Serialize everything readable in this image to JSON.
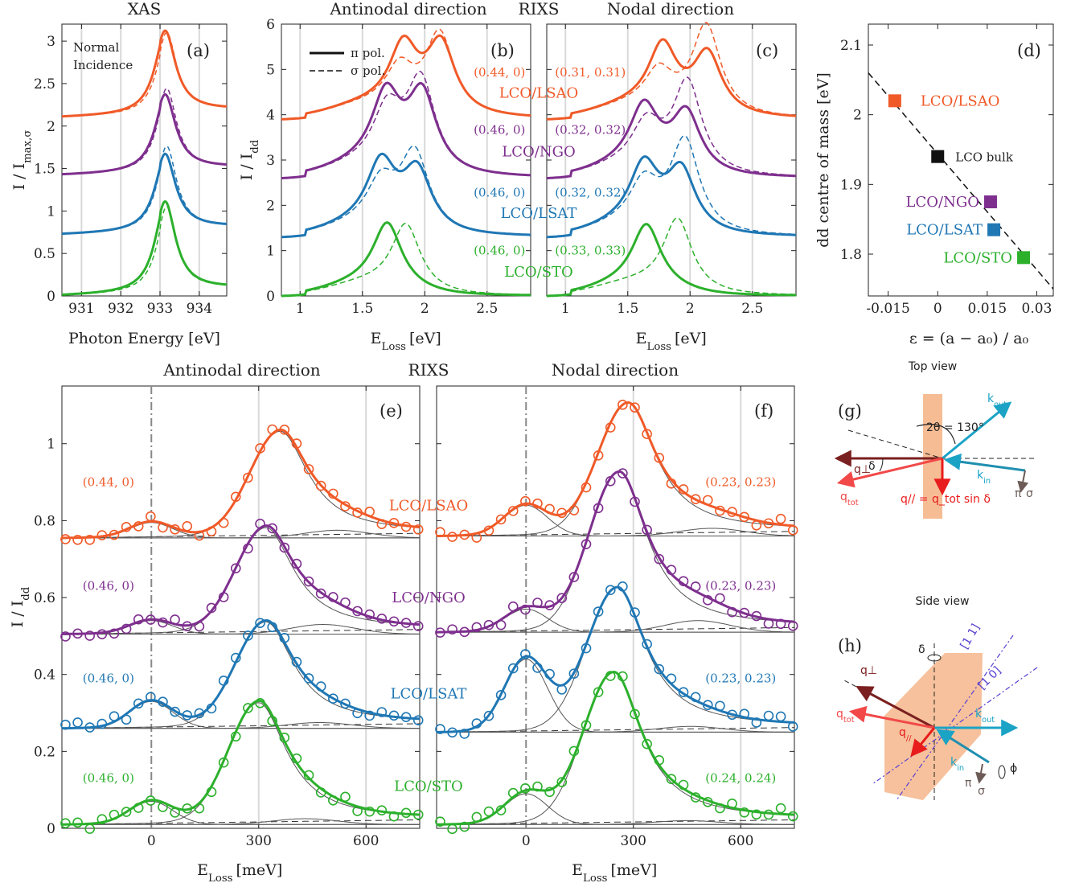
{
  "colors": {
    "LSAO": "#f05a28",
    "NGO": "#7e2f8e",
    "LSAT": "#1f77b4",
    "STO": "#2cb02c",
    "bulk": "#111111",
    "fit": "#555555",
    "kout": "#1ba3c6",
    "qperp": "#7a1f1f",
    "qtot": "#f24848",
    "qpar": "#e81c1c",
    "slab": "#f4b183",
    "plane": "#5a3fd0",
    "pol": "#6b5a55"
  },
  "top_titles": {
    "xas": "XAS",
    "antinodal": "Antinodal direction",
    "rixs": "RIXS",
    "nodal": "Nodal direction"
  },
  "bottom_titles": {
    "antinodal": "Antinodal direction",
    "rixs": "RIXS",
    "nodal": "Nodal direction"
  },
  "samples": [
    "LCO/LSAO",
    "LCO/NGO",
    "LCO/LSAT",
    "LCO/STO"
  ],
  "panel_a": {
    "label": "(a)",
    "ylabel": "I / I_max,σ",
    "xlabel": "Photon Energy [eV]",
    "note_line1": "Normal",
    "note_line2": "Incidence",
    "xticks": [
      "931",
      "932",
      "933",
      "934"
    ],
    "yticks": [
      "0",
      "0.5",
      "1",
      "1.5",
      "2",
      "2.5",
      "3"
    ]
  },
  "panel_b": {
    "label": "(b)",
    "ylabel": "I / I_dd",
    "xlabel": "E_Loss [eV]",
    "xticks": [
      "1",
      "1.5",
      "2",
      "2.5"
    ],
    "yticks": [
      "0",
      "1",
      "2",
      "3",
      "4",
      "5",
      "6"
    ],
    "legend_pi": "π pol.",
    "legend_sigma": "σ pol.",
    "q_labels": [
      "(0.44, 0)",
      "(0.46, 0)",
      "(0.46, 0)",
      "(0.46, 0)"
    ]
  },
  "panel_c": {
    "label": "(c)",
    "xlabel": "E_Loss [eV]",
    "xticks": [
      "1",
      "1.5",
      "2",
      "2.5"
    ],
    "q_labels": [
      "(0.31, 0.31)",
      "(0.32, 0.32)",
      "(0.32, 0.32)",
      "(0.33, 0.33)"
    ]
  },
  "panel_d": {
    "label": "(d)",
    "ylabel": "dd centre of mass [eV]",
    "xlabel": "ε = (a − a₀) / a₀",
    "xticks": [
      "-0.015",
      "0",
      "0.015",
      "0.03"
    ],
    "yticks": [
      "1.8",
      "1.9",
      "2",
      "2.1"
    ],
    "bulk_label": "LCO bulk"
  },
  "panel_e": {
    "label": "(e)",
    "ylabel": "I / I_dd",
    "xlabel": "E_Loss [meV]",
    "xticks": [
      "0",
      "300",
      "600"
    ],
    "yticks": [
      "0",
      "0.2",
      "0.4",
      "0.6",
      "0.8",
      "1"
    ],
    "q_labels": [
      "(0.44, 0)",
      "(0.46, 0)",
      "(0.46, 0)",
      "(0.46, 0)"
    ]
  },
  "panel_f": {
    "label": "(f)",
    "xlabel": "E_Loss [meV]",
    "xticks": [
      "0",
      "300",
      "600"
    ],
    "q_labels": [
      "(0.23, 0.23)",
      "(0.23, 0.23)",
      "(0.23, 0.23)",
      "(0.24, 0.24)"
    ]
  },
  "panel_g": {
    "label": "(g)",
    "title": "Top view",
    "k_out": "k_out",
    "k_in": "k_in",
    "q_perp": "q⊥",
    "q_tot": "q_tot",
    "q_par_eq": "q// = q_tot sin δ",
    "angle": "2θ = 130°",
    "delta": "δ",
    "pi": "π",
    "sigma": "σ"
  },
  "panel_h": {
    "label": "(h)",
    "title": "Side view",
    "k_out": "k_out",
    "k_in": "k_in",
    "q_perp": "q⊥",
    "q_tot": "q_tot",
    "q_par": "q//",
    "dir_11": "[1 1]",
    "dir_10": "[1 0]",
    "delta": "δ",
    "phi": "ϕ",
    "pi": "π",
    "sigma": "σ"
  },
  "chart_data": [
    {
      "panel": "a",
      "type": "line",
      "title": "XAS",
      "xlabel": "Photon Energy [eV]",
      "ylabel": "I / I_max,σ",
      "xlim": [
        930.5,
        934.7
      ],
      "ylim": [
        0,
        3.2
      ],
      "peak_eV": 933.05,
      "series": [
        {
          "name": "LCO/LSAO",
          "offset": 2.1,
          "peak_pi": 0.95,
          "peak_sigma": 0.93
        },
        {
          "name": "LCO/NGO",
          "offset": 1.42,
          "peak_pi": 0.88,
          "peak_sigma": 0.95
        },
        {
          "name": "LCO/LSAT",
          "offset": 0.72,
          "peak_pi": 0.88,
          "peak_sigma": 0.97
        },
        {
          "name": "LCO/STO",
          "offset": 0.0,
          "peak_pi": 1.04,
          "peak_sigma": 0.98
        }
      ]
    },
    {
      "panel": "b",
      "type": "line",
      "title": "Antinodal direction",
      "xlabel": "E_Loss [eV]",
      "ylabel": "I / I_dd",
      "xlim": [
        0.85,
        2.85
      ],
      "ylim": [
        0,
        6
      ],
      "series": [
        {
          "name": "LCO/LSAO",
          "offset": 3.9,
          "pi_peaks": [
            [
              1.83,
              1.4
            ],
            [
              2.13,
              1.55
            ]
          ],
          "sigma_peaks": [
            [
              1.8,
              0.9
            ],
            [
              2.12,
              1.8
            ]
          ]
        },
        {
          "name": "LCO/NGO",
          "offset": 2.6,
          "pi_peaks": [
            [
              1.69,
              1.55
            ],
            [
              1.98,
              1.7
            ]
          ],
          "sigma_peaks": [
            [
              1.7,
              1.2
            ],
            [
              1.97,
              2.0
            ]
          ]
        },
        {
          "name": "LCO/LSAT",
          "offset": 1.3,
          "pi_peaks": [
            [
              1.65,
              1.35
            ],
            [
              1.94,
              1.3
            ]
          ],
          "sigma_peaks": [
            [
              1.65,
              0.9
            ],
            [
              1.92,
              1.7
            ]
          ]
        },
        {
          "name": "LCO/STO",
          "offset": 0.0,
          "pi_peaks": [
            [
              1.7,
              1.4
            ]
          ],
          "sigma_peaks": [
            [
              1.85,
              1.45
            ]
          ]
        }
      ]
    },
    {
      "panel": "c",
      "type": "line",
      "title": "Nodal direction",
      "xlabel": "E_Loss [eV]",
      "xlim": [
        0.85,
        2.85
      ],
      "ylim": [
        0,
        6
      ],
      "series": [
        {
          "name": "LCO/LSAO",
          "offset": 3.9,
          "pi_peaks": [
            [
              1.78,
              1.4
            ],
            [
              2.14,
              1.35
            ]
          ],
          "sigma_peaks": [
            [
              1.75,
              0.8
            ],
            [
              2.13,
              2.0
            ]
          ]
        },
        {
          "name": "LCO/NGO",
          "offset": 2.6,
          "pi_peaks": [
            [
              1.63,
              1.3
            ],
            [
              1.97,
              1.3
            ]
          ],
          "sigma_peaks": [
            [
              1.65,
              0.9
            ],
            [
              1.98,
              2.0
            ]
          ]
        },
        {
          "name": "LCO/LSAT",
          "offset": 1.3,
          "pi_peaks": [
            [
              1.63,
              1.3
            ],
            [
              1.93,
              1.3
            ]
          ],
          "sigma_peaks": [
            [
              1.63,
              0.9
            ],
            [
              1.96,
              2.0
            ]
          ]
        },
        {
          "name": "LCO/STO",
          "offset": 0.0,
          "pi_peaks": [
            [
              1.65,
              1.35
            ]
          ],
          "sigma_peaks": [
            [
              1.9,
              1.6
            ]
          ]
        }
      ]
    },
    {
      "panel": "d",
      "type": "scatter",
      "xlabel": "ε = (a − a₀) / a₀",
      "ylabel": "dd centre of mass [eV]",
      "xlim": [
        -0.021,
        0.035
      ],
      "ylim": [
        1.74,
        2.13
      ],
      "points": [
        {
          "name": "LCO/LSAO",
          "x": -0.013,
          "y": 2.02
        },
        {
          "name": "LCO bulk",
          "x": 0.0,
          "y": 1.94
        },
        {
          "name": "LCO/NGO",
          "x": 0.016,
          "y": 1.875
        },
        {
          "name": "LCO/LSAT",
          "x": 0.017,
          "y": 1.835
        },
        {
          "name": "LCO/STO",
          "x": 0.026,
          "y": 1.795
        }
      ],
      "fit_line": [
        [
          -0.021,
          2.06
        ],
        [
          0.035,
          1.75
        ]
      ]
    },
    {
      "panel": "e",
      "type": "scatter",
      "title": "Antinodal direction",
      "xlabel": "E_Loss [meV]",
      "ylabel": "I / I_dd",
      "xlim": [
        -250,
        750
      ],
      "ylim": [
        0,
        1.15
      ],
      "series": [
        {
          "name": "LCO/LSAO",
          "q": "(0.44, 0)",
          "baseline": 0.755,
          "elastic": 0.04,
          "magnon": [
            360,
            0.27
          ],
          "phonon": [
            520,
            0.02
          ]
        },
        {
          "name": "LCO/NGO",
          "q": "(0.46, 0)",
          "baseline": 0.505,
          "elastic": 0.035,
          "magnon": [
            320,
            0.27
          ],
          "phonon": [
            480,
            0.025
          ]
        },
        {
          "name": "LCO/LSAT",
          "q": "(0.46, 0)",
          "baseline": 0.26,
          "elastic": 0.07,
          "magnon": [
            320,
            0.27
          ],
          "phonon": [
            470,
            0.015
          ]
        },
        {
          "name": "LCO/STO",
          "q": "(0.46, 0)",
          "baseline": 0.01,
          "elastic": 0.06,
          "magnon": [
            300,
            0.31
          ],
          "phonon": [
            430,
            0.015
          ]
        }
      ]
    },
    {
      "panel": "f",
      "type": "scatter",
      "title": "Nodal direction",
      "xlabel": "E_Loss [meV]",
      "xlim": [
        -250,
        750
      ],
      "ylim": [
        0,
        1.15
      ],
      "series": [
        {
          "name": "LCO/LSAO",
          "q": "(0.23, 0.23)",
          "baseline": 0.76,
          "elastic": 0.08,
          "magnon": [
            285,
            0.34
          ],
          "phonon": [
            520,
            0.02
          ]
        },
        {
          "name": "LCO/NGO",
          "q": "(0.23, 0.23)",
          "baseline": 0.51,
          "elastic": 0.06,
          "magnon": [
            260,
            0.41
          ],
          "phonon": [
            480,
            0.03
          ]
        },
        {
          "name": "LCO/LSAT",
          "q": "(0.23, 0.23)",
          "baseline": 0.25,
          "elastic": 0.19,
          "magnon": [
            255,
            0.37
          ],
          "phonon": [
            460,
            0.015
          ]
        },
        {
          "name": "LCO/STO",
          "q": "(0.24, 0.24)",
          "baseline": 0.01,
          "elastic": 0.08,
          "magnon": [
            245,
            0.39
          ],
          "phonon": [
            450,
            0.01
          ]
        }
      ]
    }
  ]
}
